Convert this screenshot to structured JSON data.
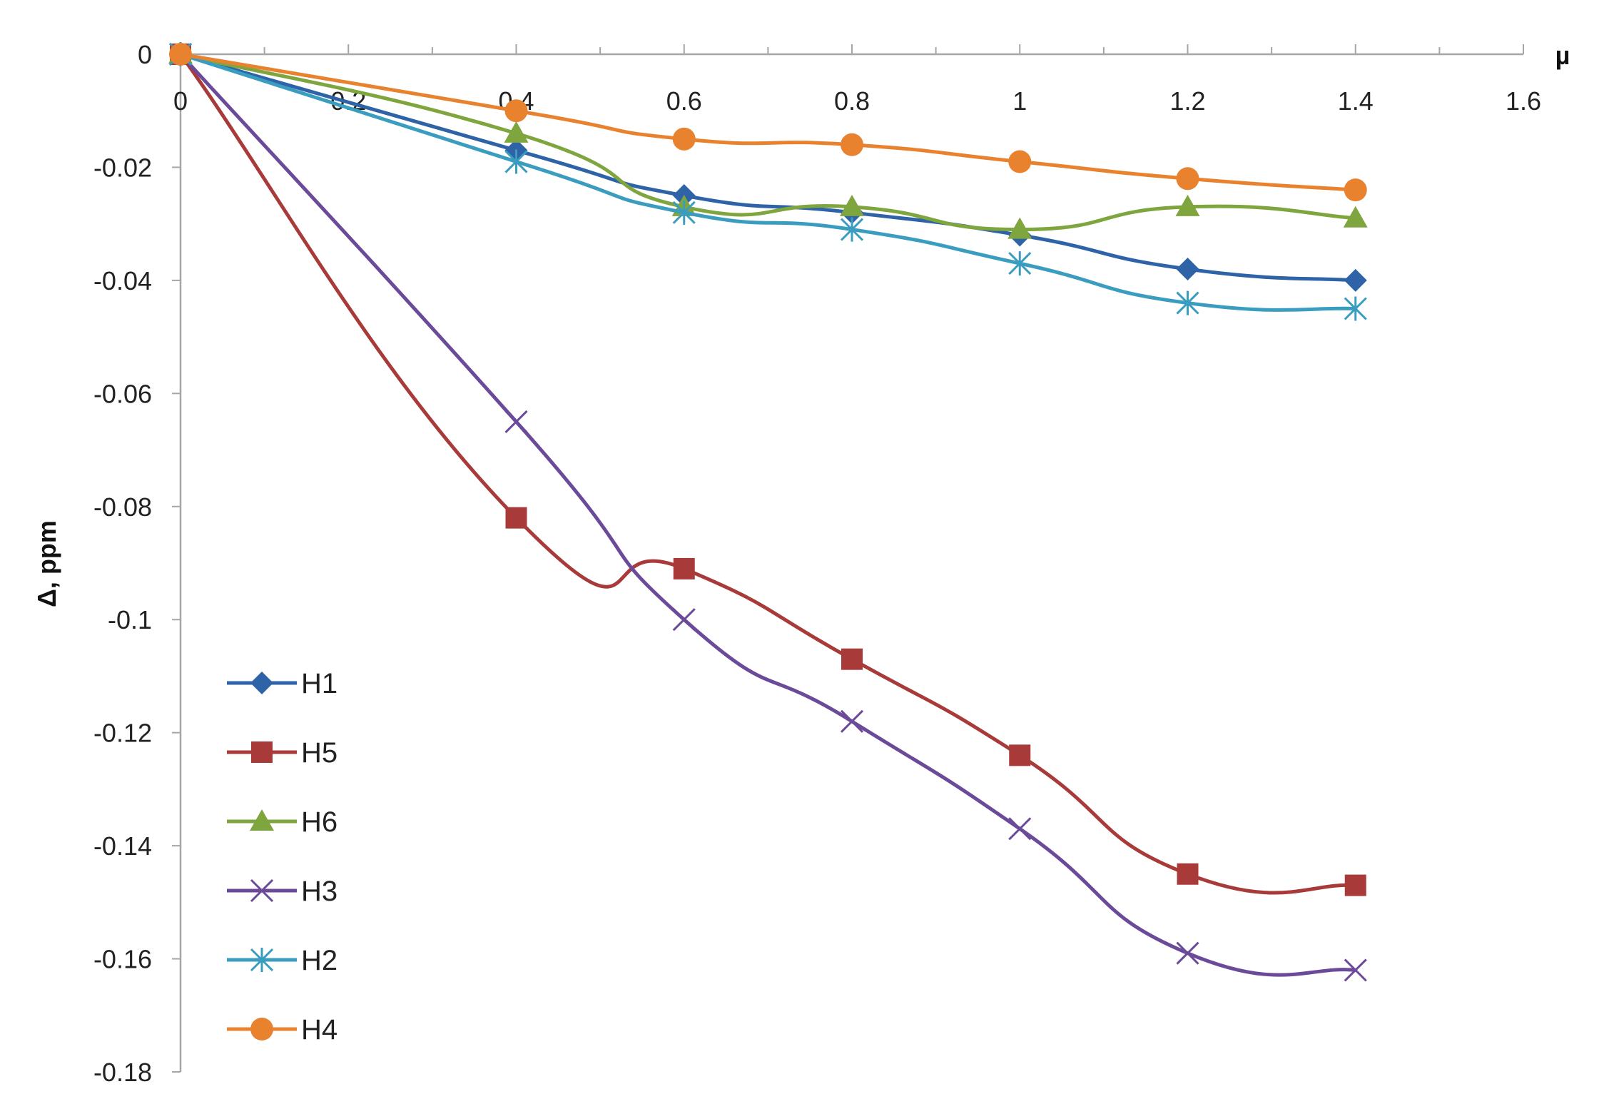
{
  "chart_data": {
    "type": "line",
    "title": "",
    "xlabel": "µ",
    "ylabel": "Δ, ppm",
    "xlim": [
      0,
      1.6
    ],
    "ylim": [
      -0.18,
      0
    ],
    "x_ticks": [
      "0",
      "0.2",
      "0.4",
      "0.6",
      "0.8",
      "1",
      "1.2",
      "1.4",
      "1.6"
    ],
    "y_ticks": [
      "0",
      "-0.02",
      "-0.04",
      "-0.06",
      "-0.08",
      "-0.1",
      "-0.12",
      "-0.14",
      "-0.16",
      "-0.18"
    ],
    "legend_position": "bottom-left",
    "x": [
      0,
      0.4,
      0.6,
      0.8,
      1.0,
      1.2,
      1.4
    ],
    "series": [
      {
        "name": "H1",
        "color": "#2E63A8",
        "marker": "diamond",
        "values": [
          0,
          -0.017,
          -0.025,
          -0.028,
          -0.032,
          -0.038,
          -0.04
        ]
      },
      {
        "name": "H5",
        "color": "#A83A3A",
        "marker": "square",
        "values": [
          0,
          -0.082,
          -0.091,
          -0.107,
          -0.124,
          -0.145,
          -0.147
        ]
      },
      {
        "name": "H6",
        "color": "#7FA63E",
        "marker": "triangle",
        "values": [
          0,
          -0.014,
          -0.027,
          -0.027,
          -0.031,
          -0.027,
          -0.029
        ]
      },
      {
        "name": "H3",
        "color": "#6B4A9A",
        "marker": "x",
        "values": [
          0,
          -0.065,
          -0.1,
          -0.118,
          -0.137,
          -0.159,
          -0.162
        ]
      },
      {
        "name": "H2",
        "color": "#3A9DC0",
        "marker": "asterisk",
        "values": [
          0,
          -0.019,
          -0.028,
          -0.031,
          -0.037,
          -0.044,
          -0.045
        ]
      },
      {
        "name": "H4",
        "color": "#E8822E",
        "marker": "circle",
        "values": [
          0,
          -0.01,
          -0.015,
          -0.016,
          -0.019,
          -0.022,
          -0.024
        ]
      }
    ]
  }
}
